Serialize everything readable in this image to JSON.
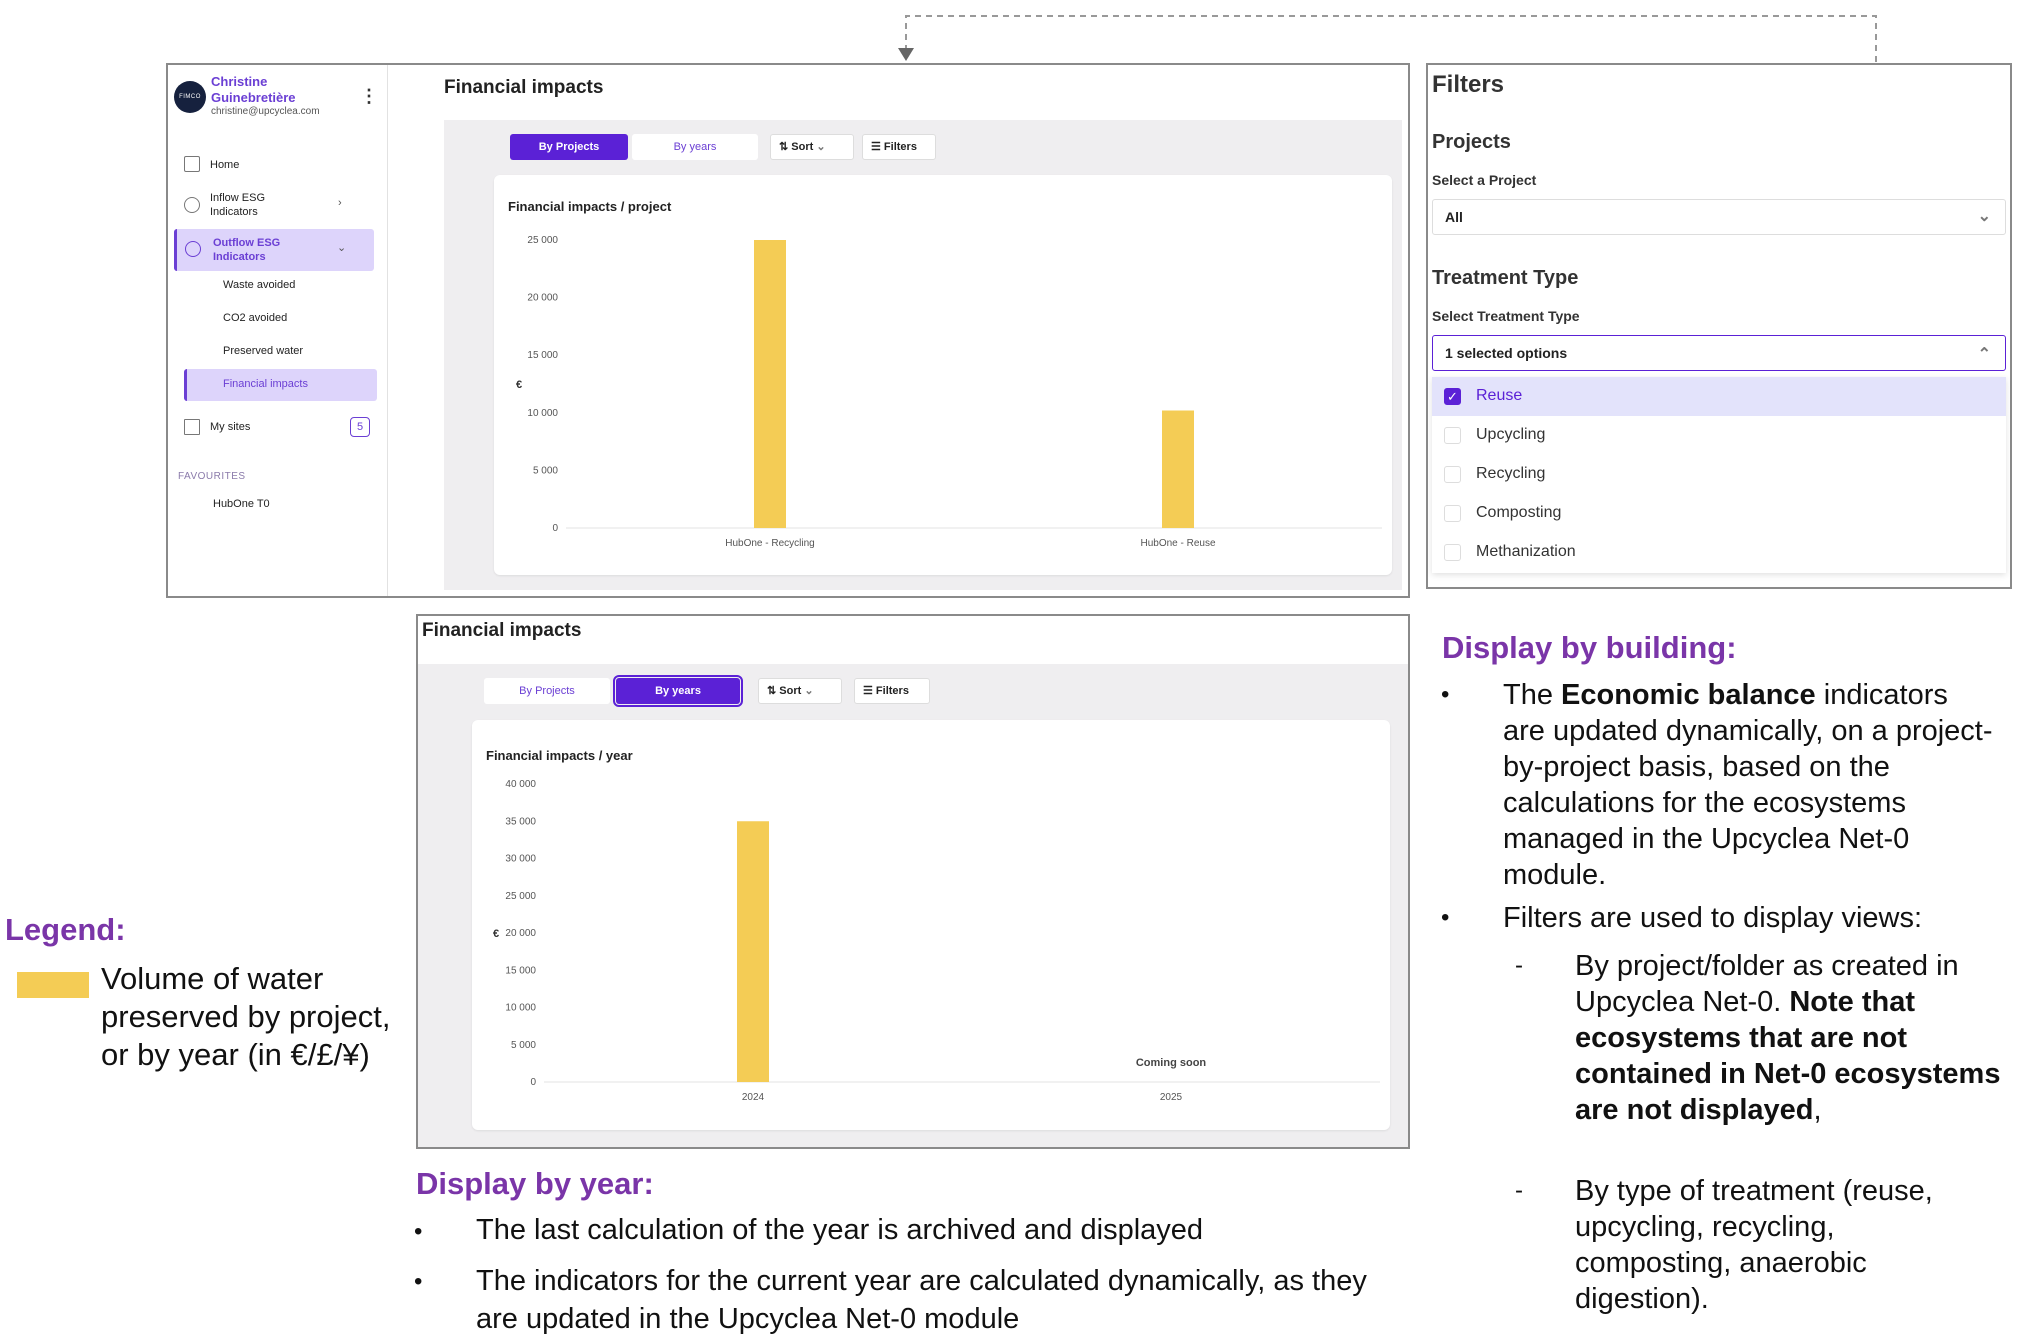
{
  "colors": {
    "accent": "#5b21d6",
    "accent_light": "#ddd4fb",
    "bar": "#f4cc55",
    "heading_purple": "#7a35a8"
  },
  "sidebar": {
    "avatar_text": "FIMCO",
    "user_name": "Christine Guinebretière",
    "user_email": "christine@upcyclea.com",
    "nav": [
      {
        "label": "Home",
        "icon": "home-icon"
      },
      {
        "label": "Inflow ESG Indicators",
        "icon": "inflow-icon"
      },
      {
        "label": "Outflow ESG Indicators",
        "icon": "outflow-icon"
      },
      {
        "label": "My sites",
        "icon": "building-icon"
      }
    ],
    "sub_items": [
      "Waste avoided",
      "CO2 avoided",
      "Preserved water",
      "Financial impacts"
    ],
    "sites_count": "5",
    "favourites_label": "FAVOURITES",
    "favourites": [
      "HubOne T0"
    ]
  },
  "top": {
    "title": "Financial impacts",
    "tabs": [
      "By Projects",
      "By years"
    ],
    "sort_label": "Sort",
    "filters_label": "Filters",
    "card_title": "Financial impacts / project"
  },
  "filters_panel": {
    "title": "Filters",
    "projects_heading": "Projects",
    "projects_label": "Select a Project",
    "projects_value": "All",
    "treatment_heading": "Treatment Type",
    "treatment_label": "Select Treatment Type",
    "treatment_value": "1 selected options",
    "options": [
      {
        "label": "Reuse",
        "checked": true
      },
      {
        "label": "Upcycling",
        "checked": false
      },
      {
        "label": "Recycling",
        "checked": false
      },
      {
        "label": "Composting",
        "checked": false
      },
      {
        "label": "Methanization",
        "checked": false
      }
    ]
  },
  "bottom": {
    "title": "Financial impacts",
    "tabs": [
      "By Projects",
      "By years"
    ],
    "sort_label": "Sort",
    "filters_label": "Filters",
    "card_title": "Financial impacts / year",
    "coming_soon": "Coming soon"
  },
  "chart_data": [
    {
      "type": "bar",
      "title": "Financial impacts / project",
      "ylabel": "€",
      "categories": [
        "HubOne - Recycling",
        "HubOne - Reuse"
      ],
      "values": [
        25000,
        10200
      ],
      "yticks": [
        "0",
        "5 000",
        "10 000",
        "15 000",
        "20 000",
        "25 000"
      ],
      "ylim": [
        0,
        25000
      ],
      "grid": false
    },
    {
      "type": "bar",
      "title": "Financial impacts / year",
      "ylabel": "€",
      "categories": [
        "2024",
        "2025"
      ],
      "values": [
        35000,
        null
      ],
      "yticks": [
        "0",
        "5 000",
        "10 000",
        "15 000",
        "20 000",
        "25 000",
        "30 000",
        "35 000",
        "40 000"
      ],
      "ylim": [
        0,
        40000
      ],
      "grid": false
    }
  ],
  "legend": {
    "heading": "Legend:",
    "text": "Volume of water preserved by project, or by year (in €/£/¥)"
  },
  "display_by_building": {
    "heading": "Display by building:",
    "bullet1_pre": "The ",
    "bullet1_bold": "Economic balance",
    "bullet1_post": " indicators are updated dynamically, on a project-by-project basis, based on the calculations for the ecosystems managed in the Upcyclea Net-0 module.",
    "bullet2": "Filters are used to display views:",
    "sub1_pre": "By project/folder as created in Upcyclea Net-0. ",
    "sub1_bold": "Note that ecosystems that are not contained in Net-0 ecosystems are not displayed",
    "sub1_post": ",",
    "sub2": "By type of treatment (reuse, upcycling, recycling, composting, anaerobic digestion)."
  },
  "display_by_year": {
    "heading": "Display by year:",
    "bullet1": "The last calculation of the year is archived and displayed",
    "bullet2": "The indicators for the current year are calculated dynamically, as they are updated in the Upcyclea Net-0 module"
  }
}
